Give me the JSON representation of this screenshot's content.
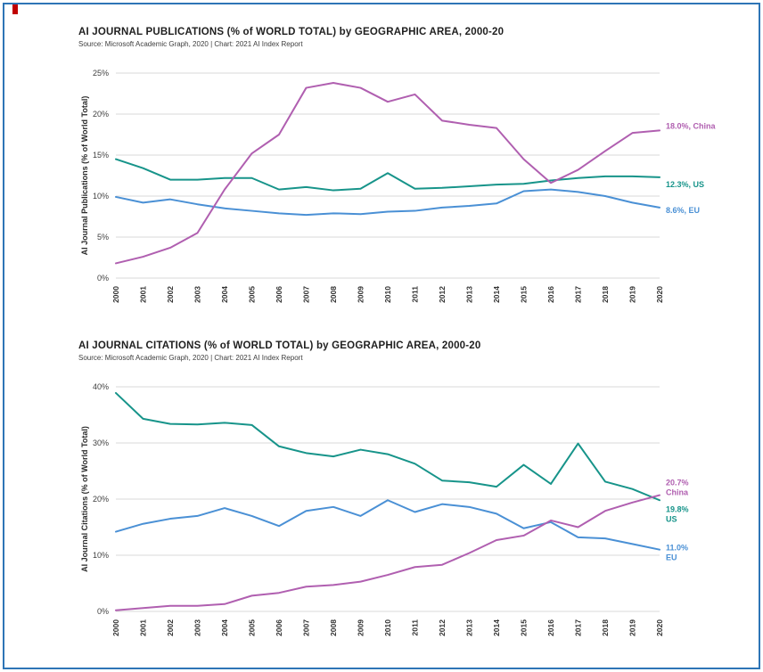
{
  "page": {
    "border_color": "#2e75b6",
    "corner_mark_color": "#c00000"
  },
  "chart_data": [
    {
      "type": "line",
      "title": "AI JOURNAL PUBLICATIONS (% of WORLD TOTAL) by GEOGRAPHIC AREA, 2000-20",
      "source": "Source: Microsoft Academic Graph, 2020 | Chart: 2021 AI Index Report",
      "ylabel": "AI Journal Publications (% of World Total)",
      "ylim": [
        0,
        25
      ],
      "yticks": [
        0,
        5,
        10,
        15,
        20,
        25
      ],
      "grid": "horizontal",
      "legend_position": "right-edge-labels",
      "x": [
        2000,
        2001,
        2002,
        2003,
        2004,
        2005,
        2006,
        2007,
        2008,
        2009,
        2010,
        2011,
        2012,
        2013,
        2014,
        2015,
        2016,
        2017,
        2018,
        2019,
        2020
      ],
      "series": [
        {
          "name": "US",
          "color": "#17948a",
          "values": [
            14.5,
            13.4,
            12.0,
            12.0,
            12.2,
            12.2,
            10.8,
            11.1,
            10.7,
            10.9,
            12.8,
            10.9,
            11.0,
            11.2,
            11.4,
            11.5,
            11.9,
            12.2,
            12.4,
            12.4,
            12.3
          ],
          "end_label": {
            "lines": [
              "12.3%, US"
            ],
            "dy": 8
          }
        },
        {
          "name": "EU",
          "color": "#4a90d5",
          "values": [
            9.9,
            9.2,
            9.6,
            9.0,
            8.5,
            8.2,
            7.9,
            7.7,
            7.9,
            7.8,
            8.1,
            8.2,
            8.6,
            8.8,
            9.1,
            10.6,
            10.8,
            10.5,
            10.0,
            9.2,
            8.6
          ],
          "end_label": {
            "lines": [
              "8.6%, EU"
            ],
            "dy": 3
          }
        },
        {
          "name": "China",
          "color": "#b05fb0",
          "values": [
            1.8,
            2.6,
            3.7,
            5.5,
            10.8,
            15.2,
            17.5,
            23.2,
            23.8,
            23.2,
            21.5,
            22.4,
            19.2,
            18.7,
            18.3,
            14.5,
            11.6,
            13.2,
            15.5,
            17.7,
            18.0
          ],
          "end_label": {
            "lines": [
              "18.0%, China"
            ],
            "dy": -5
          }
        }
      ]
    },
    {
      "type": "line",
      "title": "AI JOURNAL CITATIONS (% of WORLD TOTAL) by GEOGRAPHIC AREA, 2000-20",
      "source": "Source: Microsoft Academic Graph, 2020 | Chart: 2021 AI Index Report",
      "ylabel": "AI Journal Citations (% of World Total)",
      "ylim": [
        0,
        40
      ],
      "yticks": [
        0,
        10,
        20,
        30,
        40
      ],
      "grid": "horizontal",
      "legend_position": "right-edge-labels",
      "x": [
        2000,
        2001,
        2002,
        2003,
        2004,
        2005,
        2006,
        2007,
        2008,
        2009,
        2010,
        2011,
        2012,
        2013,
        2014,
        2015,
        2016,
        2017,
        2018,
        2019,
        2020
      ],
      "series": [
        {
          "name": "US",
          "color": "#17948a",
          "values": [
            38.9,
            34.3,
            33.4,
            33.3,
            33.6,
            33.2,
            29.4,
            28.2,
            27.6,
            28.8,
            28.0,
            26.3,
            23.3,
            23.0,
            22.2,
            26.1,
            22.7,
            29.9,
            23.1,
            21.8,
            19.8
          ],
          "end_label": {
            "lines": [
              "19.8%",
              "US"
            ],
            "dy": 10
          }
        },
        {
          "name": "EU",
          "color": "#4a90d5",
          "values": [
            14.2,
            15.6,
            16.5,
            17.0,
            18.4,
            17.0,
            15.2,
            17.9,
            18.6,
            17.0,
            19.8,
            17.7,
            19.1,
            18.6,
            17.4,
            14.8,
            15.9,
            13.2,
            13.0,
            12.0,
            11.0
          ],
          "end_label": {
            "lines": [
              "11.0%",
              "EU"
            ],
            "dy": -2
          }
        },
        {
          "name": "China",
          "color": "#b05fb0",
          "values": [
            0.2,
            0.6,
            1.0,
            1.0,
            1.3,
            2.8,
            3.3,
            4.4,
            4.7,
            5.3,
            6.5,
            7.9,
            8.3,
            10.4,
            12.7,
            13.5,
            16.2,
            15.0,
            17.9,
            19.4,
            20.7
          ],
          "end_label": {
            "lines": [
              "20.7%",
              "China"
            ],
            "dy": -14
          }
        }
      ]
    }
  ]
}
